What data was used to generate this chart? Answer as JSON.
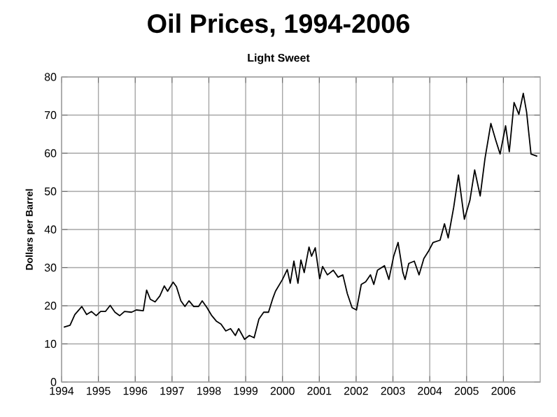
{
  "chart_data": {
    "type": "line",
    "title": "Oil Prices, 1994-2006",
    "subtitle": "Light Sweet",
    "ylabel": "Dollars per Barrel",
    "xlim": [
      1994,
      2007
    ],
    "xticks": [
      1994,
      1995,
      1996,
      1997,
      1998,
      1999,
      2000,
      2001,
      2002,
      2003,
      2004,
      2005,
      2006
    ],
    "ylim": [
      0,
      80
    ],
    "yticks": [
      0,
      10,
      20,
      30,
      40,
      50,
      60,
      70,
      80
    ],
    "grid": true,
    "marker": "none",
    "line_style": "solid",
    "series": [
      {
        "color": "#000000",
        "x": [
          1994.06,
          1994.23,
          1994.36,
          1994.55,
          1994.68,
          1994.81,
          1994.94,
          1995.06,
          1995.19,
          1995.32,
          1995.45,
          1995.58,
          1995.71,
          1995.9,
          1996.03,
          1996.22,
          1996.31,
          1996.41,
          1996.54,
          1996.67,
          1996.79,
          1996.88,
          1997.03,
          1997.12,
          1997.24,
          1997.35,
          1997.46,
          1997.59,
          1997.72,
          1997.82,
          1997.95,
          1998.08,
          1998.21,
          1998.33,
          1998.46,
          1998.59,
          1998.72,
          1998.81,
          1998.97,
          1999.1,
          1999.23,
          1999.36,
          1999.49,
          1999.62,
          1999.74,
          1999.81,
          2000.0,
          2000.13,
          2000.21,
          2000.31,
          2000.42,
          2000.5,
          2000.59,
          2000.72,
          2000.79,
          2000.89,
          2001.01,
          2001.09,
          2001.22,
          2001.38,
          2001.51,
          2001.64,
          2001.76,
          2001.89,
          2002.01,
          2002.14,
          2002.26,
          2002.39,
          2002.48,
          2002.58,
          2002.77,
          2002.89,
          2003.02,
          2003.14,
          2003.27,
          2003.33,
          2003.43,
          2003.58,
          2003.71,
          2003.84,
          2003.96,
          2004.09,
          2004.28,
          2004.4,
          2004.5,
          2004.65,
          2004.78,
          2004.94,
          2005.09,
          2005.22,
          2005.37,
          2005.5,
          2005.66,
          2005.79,
          2005.91,
          2006.06,
          2006.16,
          2006.29,
          2006.42,
          2006.54,
          2006.63,
          2006.75,
          2006.92
        ],
        "values": [
          14.4,
          14.9,
          17.7,
          19.8,
          17.7,
          18.5,
          17.4,
          18.5,
          18.5,
          20.1,
          18.3,
          17.4,
          18.5,
          18.3,
          18.9,
          18.7,
          24.1,
          21.7,
          21.0,
          22.6,
          25.2,
          23.8,
          26.2,
          25.0,
          21.3,
          19.8,
          21.3,
          19.8,
          19.8,
          21.3,
          19.5,
          17.4,
          15.9,
          15.2,
          13.4,
          14.0,
          12.2,
          14.0,
          11.2,
          12.2,
          11.6,
          16.5,
          18.3,
          18.3,
          22.0,
          23.8,
          26.9,
          29.5,
          25.9,
          31.7,
          25.9,
          32.0,
          28.7,
          35.4,
          33.0,
          35.2,
          27.1,
          30.3,
          28.1,
          29.3,
          27.5,
          28.1,
          23.2,
          19.5,
          18.9,
          25.6,
          26.3,
          28.1,
          25.6,
          29.3,
          30.5,
          26.9,
          33.0,
          36.6,
          28.7,
          26.9,
          31.1,
          31.7,
          28.1,
          32.4,
          34.2,
          36.6,
          37.2,
          41.5,
          37.8,
          45.8,
          54.3,
          42.7,
          47.6,
          55.6,
          48.8,
          58.6,
          67.8,
          63.5,
          59.8,
          67.2,
          60.4,
          73.3,
          70.2,
          75.7,
          70.8,
          59.8,
          59.2
        ]
      }
    ]
  }
}
